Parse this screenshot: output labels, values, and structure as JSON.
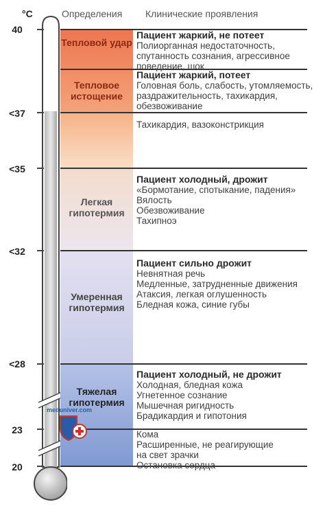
{
  "header": {
    "unit": "°C",
    "definitions": "Определения",
    "clinical": "Клинические проявления"
  },
  "ticks": [
    "40",
    "<37",
    "<35",
    "<32",
    "<28",
    "23",
    "20"
  ],
  "zones": [
    {
      "name": "Тепловой удар",
      "title": "Пациент жаркий, не потеет",
      "lines": [
        "Полиорганная недостаточность,",
        "спутанность сознания, агрессивное",
        "поведение, шок"
      ]
    },
    {
      "name": "Тепловое истощение",
      "title": "Пациент жаркий, потеет",
      "lines": [
        "Головная боль, слабость, утомляемость,",
        "раздражительность, тахикардия,",
        "обезвоживание"
      ]
    },
    {
      "name": "",
      "title": "",
      "lines": [
        "Тахикардия, вазоконстрикция"
      ]
    },
    {
      "name": "Легкая гипотермия",
      "title": "Пациент холодный, дрожит",
      "lines": [
        "«Бормотание, спотыкание, падения»",
        "Вялость",
        "Обезвоживание",
        "Тахипноэ"
      ]
    },
    {
      "name": "Умеренная гипотермия",
      "title": "Пациент сильно дрожит",
      "lines": [
        "Невнятная речь",
        "Медленные, затрудненные движения",
        "Атаксия, легкая оглушенность",
        "Бледная кожа, синие губы"
      ]
    },
    {
      "name": "Тяжелая гипотермия",
      "title": "Пациент холодный, не дрожит",
      "lines": [
        "Холодная, бледная кожа",
        "Угнетенное сознание",
        "Мышечная ригидность",
        "Брадикардия и гипотония"
      ]
    },
    {
      "name": "",
      "title": "",
      "lines": [
        "Кома",
        "Расширенные, не реагирующие",
        "на свет зрачки",
        "Остановка сердца"
      ]
    }
  ],
  "watermark": "meduniver.com",
  "colors": {
    "hot": "#ef7a55",
    "warm": "#f6b98a",
    "cool": "#d9d4ea",
    "cold": "#7f99d2"
  }
}
